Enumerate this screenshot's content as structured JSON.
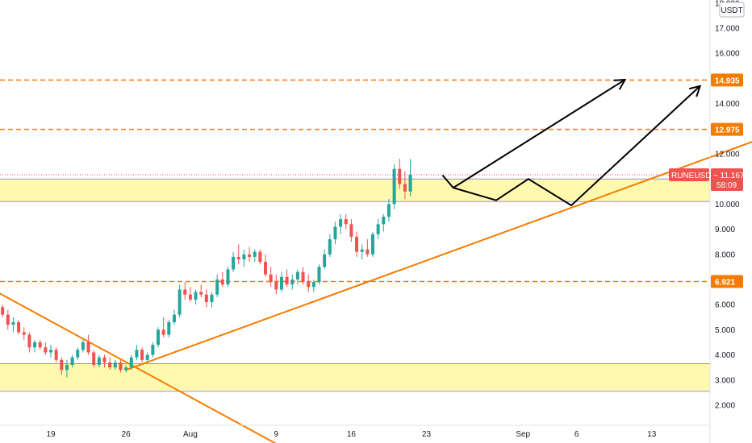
{
  "chart_data": {
    "type": "candlestick",
    "symbol": "RUNEUSDT",
    "last_price": "11.167",
    "countdown": "58:09",
    "currency_badge": "USDT",
    "y_axis": {
      "ticks": [
        "2.000",
        "3.000",
        "4.000",
        "5.000",
        "6.000",
        "7.000",
        "8.000",
        "9.000",
        "10.000",
        "11.000",
        "12.000",
        "13.000",
        "14.000",
        "15.000",
        "16.000",
        "17.000",
        "18.000"
      ],
      "visible_tick_labels": [
        "2.000",
        "3.000",
        "4.000",
        "5.000",
        "6.000",
        "8.000",
        "9.000",
        "10.000",
        "12.000",
        "14.000",
        "16.000",
        "17.000",
        "18.000"
      ],
      "range": [
        1.4,
        18.0
      ]
    },
    "x_axis": {
      "tick_labels": [
        "19",
        "26",
        "Aug",
        "9",
        "16",
        "23",
        "Sep",
        "6",
        "13"
      ],
      "tick_days": [
        19,
        26,
        32,
        40,
        47,
        54,
        63,
        68,
        75
      ]
    },
    "levels": [
      {
        "price": 14.935,
        "label": "14.935",
        "style": "dashed",
        "color": "#f57c00"
      },
      {
        "price": 12.975,
        "label": "12.975",
        "style": "dashed",
        "color": "#f57c00"
      },
      {
        "price": 6.921,
        "label": "6.921",
        "style": "dashed",
        "color": "#f57c00"
      }
    ],
    "zones": [
      {
        "from": 10.1,
        "to": 11.0,
        "color": "#fff9b0"
      },
      {
        "from": 2.55,
        "to": 3.65,
        "color": "#fff9b0"
      }
    ],
    "trendlines": [
      {
        "from": [
          14,
          6.5
        ],
        "to": [
          42,
          0.0
        ],
        "color": "#f57c00"
      },
      {
        "from": [
          26,
          3.4
        ],
        "to": [
          89,
          13.2
        ],
        "color": "#f57c00"
      }
    ],
    "projection_path": [
      [
        55.5,
        11.15
      ],
      [
        56.5,
        10.65
      ],
      [
        60.5,
        10.15
      ],
      [
        63.5,
        11.0
      ],
      [
        67.5,
        9.95
      ],
      [
        79.5,
        14.7
      ]
    ],
    "projection_arrow_up_1": [
      [
        56.5,
        10.65
      ],
      [
        72.5,
        14.95
      ]
    ],
    "candles": [
      [
        13,
        5.8,
        5.9,
        5.3,
        5.5
      ],
      [
        14,
        5.5,
        6.1,
        5.4,
        5.9
      ],
      [
        14.5,
        5.9,
        6.0,
        5.5,
        5.6
      ],
      [
        15,
        5.6,
        5.8,
        5.0,
        5.2
      ],
      [
        15.5,
        5.2,
        5.5,
        4.9,
        5.3
      ],
      [
        16,
        5.3,
        5.4,
        4.8,
        4.9
      ],
      [
        16.5,
        4.9,
        5.1,
        4.6,
        4.8
      ],
      [
        17,
        4.8,
        4.9,
        4.1,
        4.3
      ],
      [
        17.5,
        4.3,
        4.6,
        4.1,
        4.5
      ],
      [
        18,
        4.5,
        4.6,
        4.2,
        4.3
      ],
      [
        18.5,
        4.3,
        4.5,
        4.0,
        4.1
      ],
      [
        19,
        4.1,
        4.4,
        3.9,
        4.2
      ],
      [
        19.5,
        4.2,
        4.3,
        3.7,
        3.8
      ],
      [
        20,
        3.8,
        3.9,
        3.2,
        3.4
      ],
      [
        20.5,
        3.4,
        3.8,
        3.1,
        3.6
      ],
      [
        21,
        3.6,
        4.0,
        3.5,
        3.9
      ],
      [
        21.5,
        3.9,
        4.3,
        3.8,
        4.2
      ],
      [
        22,
        4.2,
        4.6,
        4.1,
        4.5
      ],
      [
        22.5,
        4.5,
        4.8,
        4.0,
        4.1
      ],
      [
        23,
        4.1,
        4.2,
        3.5,
        3.6
      ],
      [
        23.5,
        3.6,
        4.0,
        3.5,
        3.9
      ],
      [
        24,
        3.9,
        4.0,
        3.5,
        3.7
      ],
      [
        24.5,
        3.7,
        3.9,
        3.4,
        3.5
      ],
      [
        25,
        3.5,
        3.8,
        3.4,
        3.7
      ],
      [
        25.5,
        3.7,
        3.8,
        3.3,
        3.4
      ],
      [
        26,
        3.4,
        3.6,
        3.3,
        3.5
      ],
      [
        26.5,
        3.5,
        4.0,
        3.4,
        3.9
      ],
      [
        27,
        3.9,
        4.4,
        3.8,
        4.2
      ],
      [
        27.5,
        4.2,
        4.3,
        3.7,
        3.8
      ],
      [
        28,
        3.8,
        4.1,
        3.7,
        4.0
      ],
      [
        28.5,
        4.0,
        4.5,
        3.9,
        4.4
      ],
      [
        29,
        4.4,
        5.1,
        4.3,
        5.0
      ],
      [
        29.5,
        5.0,
        5.5,
        4.7,
        4.8
      ],
      [
        30,
        4.8,
        5.4,
        4.7,
        5.3
      ],
      [
        30.5,
        5.3,
        5.8,
        5.2,
        5.6
      ],
      [
        31,
        5.6,
        6.8,
        5.5,
        6.6
      ],
      [
        31.5,
        6.6,
        6.9,
        6.2,
        6.4
      ],
      [
        32,
        6.4,
        6.7,
        6.1,
        6.2
      ],
      [
        32.5,
        6.2,
        6.6,
        6.0,
        6.5
      ],
      [
        33,
        6.5,
        6.8,
        6.3,
        6.4
      ],
      [
        33.5,
        6.4,
        6.6,
        5.9,
        6.1
      ],
      [
        34,
        6.1,
        6.5,
        5.9,
        6.4
      ],
      [
        34.5,
        6.4,
        7.2,
        6.3,
        7.0
      ],
      [
        35,
        7.0,
        7.3,
        6.7,
        6.8
      ],
      [
        35.5,
        6.8,
        7.5,
        6.7,
        7.4
      ],
      [
        36,
        7.4,
        8.1,
        7.3,
        7.9
      ],
      [
        36.5,
        7.9,
        8.4,
        7.6,
        7.8
      ],
      [
        37,
        7.8,
        8.2,
        7.5,
        8.0
      ],
      [
        37.5,
        8.0,
        8.3,
        7.7,
        7.9
      ],
      [
        38,
        7.9,
        8.2,
        7.7,
        8.1
      ],
      [
        38.5,
        8.1,
        8.2,
        7.6,
        7.7
      ],
      [
        39,
        7.7,
        8.0,
        7.1,
        7.2
      ],
      [
        39.5,
        7.2,
        7.5,
        6.7,
        6.9
      ],
      [
        40,
        6.9,
        7.2,
        6.4,
        6.6
      ],
      [
        40.5,
        6.6,
        7.3,
        6.5,
        7.1
      ],
      [
        41,
        7.1,
        7.4,
        6.7,
        6.8
      ],
      [
        41.5,
        6.8,
        7.2,
        6.6,
        7.0
      ],
      [
        42,
        7.0,
        7.4,
        6.8,
        7.3
      ],
      [
        42.5,
        7.3,
        7.5,
        6.8,
        6.9
      ],
      [
        43,
        6.9,
        7.2,
        6.5,
        6.7
      ],
      [
        43.5,
        6.7,
        7.0,
        6.5,
        6.9
      ],
      [
        44,
        6.9,
        7.6,
        6.8,
        7.5
      ],
      [
        44.5,
        7.5,
        8.2,
        7.4,
        8.0
      ],
      [
        45,
        8.0,
        8.8,
        7.9,
        8.6
      ],
      [
        45.5,
        8.6,
        9.3,
        8.4,
        9.1
      ],
      [
        46,
        9.1,
        9.6,
        8.8,
        9.4
      ],
      [
        46.5,
        9.4,
        9.6,
        9.0,
        9.2
      ],
      [
        47,
        9.2,
        9.4,
        8.5,
        8.7
      ],
      [
        47.5,
        8.7,
        8.9,
        7.9,
        8.1
      ],
      [
        48,
        8.1,
        8.4,
        7.8,
        8.2
      ],
      [
        48.5,
        8.2,
        8.6,
        7.9,
        8.0
      ],
      [
        49,
        8.0,
        8.9,
        7.9,
        8.8
      ],
      [
        49.5,
        8.8,
        9.4,
        8.6,
        9.2
      ],
      [
        50,
        9.2,
        9.6,
        8.9,
        9.5
      ],
      [
        50.5,
        9.5,
        10.2,
        9.3,
        10.0
      ],
      [
        51,
        10.0,
        11.6,
        9.8,
        11.4
      ],
      [
        51.5,
        11.4,
        11.8,
        10.6,
        10.8
      ],
      [
        52,
        10.8,
        11.3,
        10.2,
        10.5
      ],
      [
        52.5,
        10.5,
        11.8,
        10.3,
        11.167
      ]
    ]
  }
}
